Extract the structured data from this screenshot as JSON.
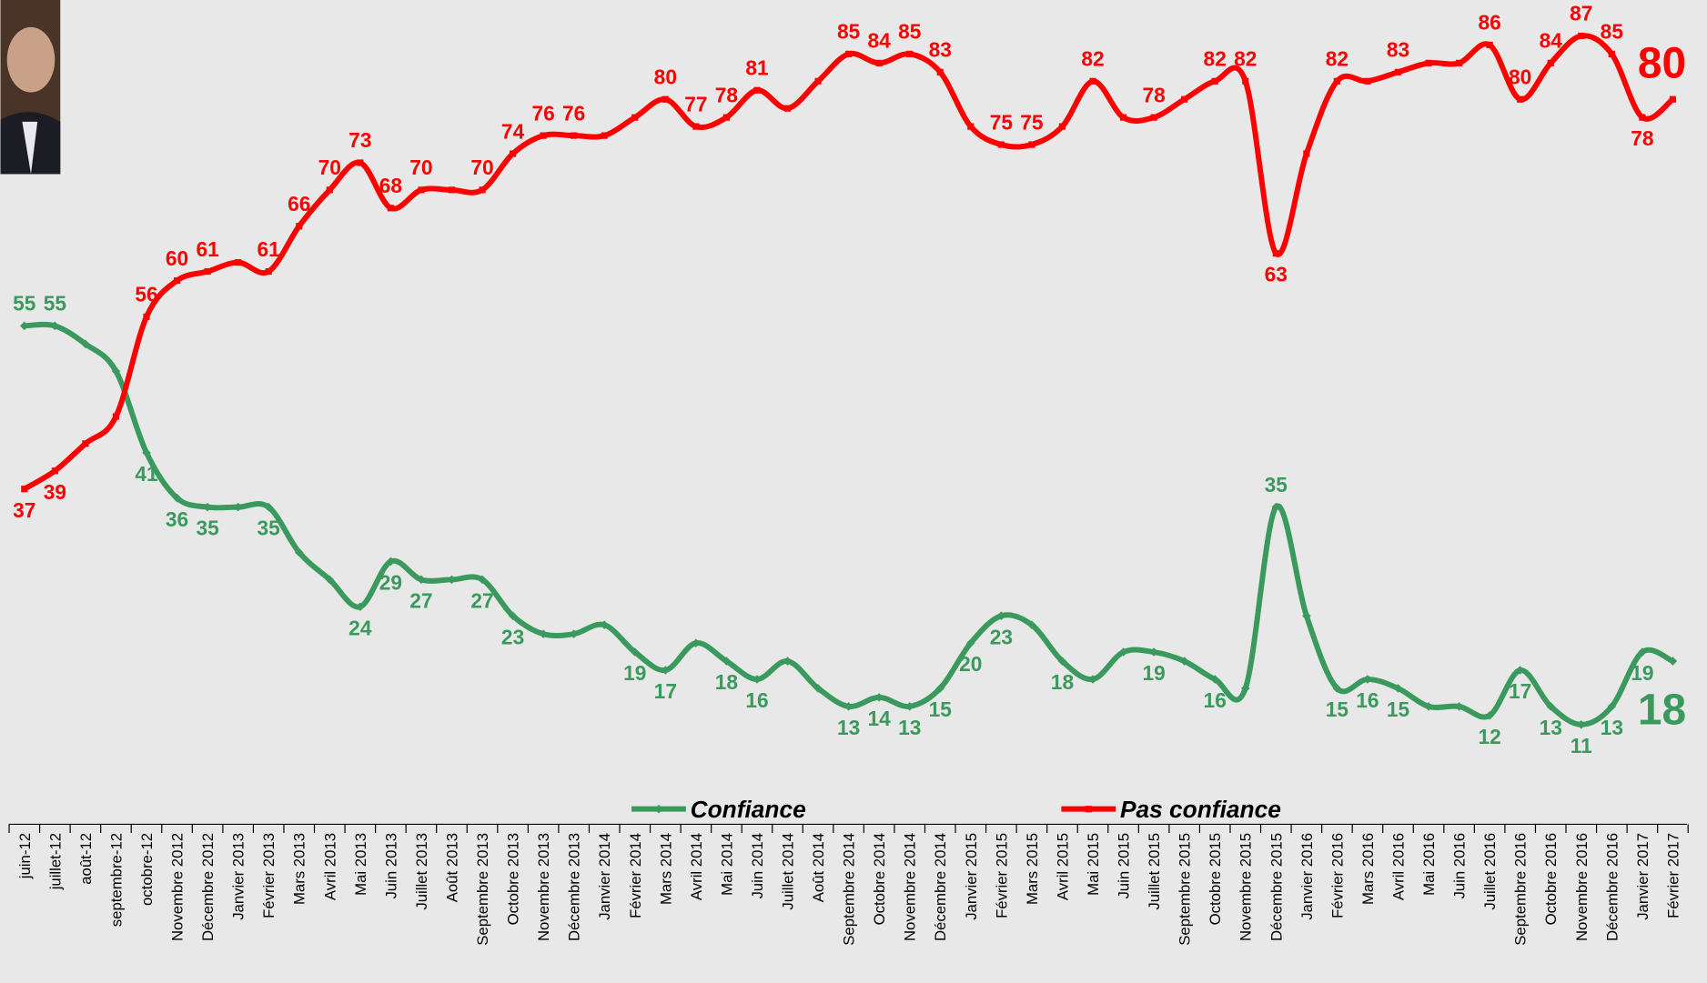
{
  "chart_data": {
    "type": "line",
    "categories": [
      "juin-12",
      "juillet-12",
      "août-12",
      "septembre-12",
      "octobre-12",
      "Novembre 2012",
      "Décembre 2012",
      "Janvier 2013",
      "Février 2013",
      "Mars 2013",
      "Avril 2013",
      "Mai 2013",
      "Juin 2013",
      "Juillet 2013",
      "Août 2013",
      "Septembre 2013",
      "Octobre 2013",
      "Novembre 2013",
      "Décembre 2013",
      "Janvier 2014",
      "Février 2014",
      "Mars 2014",
      "Avril 2014",
      "Mai 2014",
      "Juin 2014",
      "Juillet 2014",
      "Août 2014",
      "Septembre 2014",
      "Octobre 2014",
      "Novembre 2014",
      "Décembre 2014",
      "Janvier 2015",
      "Février 2015",
      "Mars 2015",
      "Avril 2015",
      "Mai 2015",
      "Juin 2015",
      "Juillet 2015",
      "Septembre 2015",
      "Octobre 2015",
      "Novembre 2015",
      "Décembre 2015",
      "Janvier 2016",
      "Février 2016",
      "Mars 2016",
      "Avril 2016",
      "Mai 2016",
      "Juin 2016",
      "Juillet 2016",
      "Septembre 2016",
      "Octobre 2016",
      "Novembre 2016",
      "Décembre 2016",
      "Janvier 2017",
      "Février 2017"
    ],
    "series": [
      {
        "name": "Confiance",
        "color": "#3a9a5e",
        "values": [
          55,
          55,
          53,
          50,
          41,
          36,
          35,
          35,
          35,
          30,
          27,
          24,
          29,
          27,
          27,
          27,
          23,
          21,
          21,
          22,
          19,
          17,
          20,
          18,
          16,
          18,
          15,
          13,
          14,
          13,
          15,
          20,
          23,
          22,
          18,
          16,
          19,
          19,
          18,
          16,
          15,
          35,
          23,
          15,
          16,
          15,
          13,
          13,
          12,
          17,
          13,
          11,
          13,
          19,
          18
        ],
        "value_labels": [
          55,
          55,
          null,
          null,
          41,
          36,
          35,
          null,
          35,
          null,
          null,
          24,
          29,
          27,
          null,
          27,
          23,
          null,
          null,
          null,
          19,
          17,
          null,
          18,
          16,
          null,
          null,
          13,
          14,
          13,
          15,
          20,
          23,
          null,
          18,
          null,
          null,
          19,
          null,
          16,
          null,
          35,
          null,
          15,
          16,
          15,
          null,
          null,
          12,
          17,
          13,
          11,
          13,
          19,
          18
        ]
      },
      {
        "name": "Pas confiance",
        "color": "#ff0000",
        "values": [
          37,
          39,
          42,
          45,
          56,
          60,
          61,
          62,
          61,
          66,
          70,
          73,
          68,
          70,
          70,
          70,
          74,
          76,
          76,
          76,
          78,
          80,
          77,
          78,
          81,
          79,
          82,
          85,
          84,
          85,
          83,
          77,
          75,
          75,
          77,
          82,
          78,
          78,
          80,
          82,
          82,
          63,
          74,
          82,
          82,
          83,
          84,
          84,
          86,
          80,
          84,
          87,
          85,
          78,
          80
        ],
        "value_labels": [
          37,
          39,
          null,
          null,
          56,
          60,
          61,
          null,
          61,
          66,
          70,
          73,
          68,
          70,
          null,
          70,
          74,
          76,
          76,
          null,
          null,
          80,
          77,
          78,
          81,
          null,
          null,
          85,
          84,
          85,
          83,
          null,
          75,
          75,
          null,
          82,
          null,
          78,
          null,
          82,
          82,
          63,
          null,
          82,
          null,
          83,
          null,
          null,
          86,
          80,
          84,
          87,
          85,
          78,
          80
        ]
      }
    ],
    "ylim": [
      0,
      90
    ],
    "legend": "bottom"
  }
}
